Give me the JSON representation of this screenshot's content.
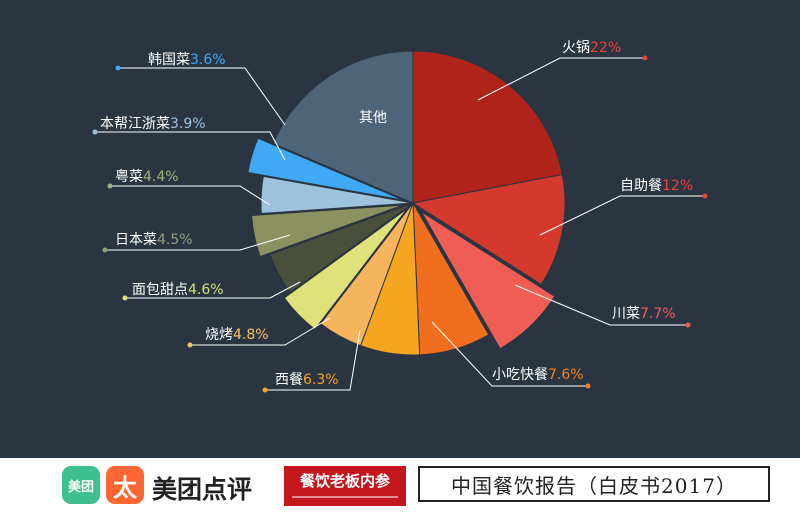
{
  "chart_data": {
    "type": "pie",
    "slices": [
      {
        "label": "火锅",
        "value": 22,
        "value_text": "22%",
        "color": "#b0231b",
        "label_color": "#ffffff",
        "value_color": "#e8443a"
      },
      {
        "label": "自助餐",
        "value": 12,
        "value_text": "12%",
        "color": "#d5392e",
        "label_color": "#ffffff",
        "value_color": "#e8443a"
      },
      {
        "label": "川菜",
        "value": 7.7,
        "value_text": "7.7%",
        "color": "#f05d55",
        "label_color": "#ffffff",
        "value_color": "#f05d55"
      },
      {
        "label": "小吃快餐",
        "value": 7.6,
        "value_text": "7.6%",
        "color": "#f26e1f",
        "label_color": "#ffffff",
        "value_color": "#f5821f"
      },
      {
        "label": "西餐",
        "value": 6.3,
        "value_text": "6.3%",
        "color": "#f5a51f",
        "label_color": "#ffffff",
        "value_color": "#f5a51f"
      },
      {
        "label": "烧烤",
        "value": 4.8,
        "value_text": "4.8%",
        "color": "#f7b45e",
        "label_color": "#ffffff",
        "value_color": "#f7c35e"
      },
      {
        "label": "面包甜点",
        "value": 4.6,
        "value_text": "4.6%",
        "color": "#dfe27a",
        "label_color": "#ffffff",
        "value_color": "#d9e07a"
      },
      {
        "label": "日本菜",
        "value": 4.5,
        "value_text": "4.5%",
        "color": "#4a4f3c",
        "label_color": "#ffffff",
        "value_color": "#8fa07a"
      },
      {
        "label": "粤菜",
        "value": 4.4,
        "value_text": "4.4%",
        "color": "#8c9160",
        "label_color": "#ffffff",
        "value_color": "#a4b07a"
      },
      {
        "label": "本帮江浙菜",
        "value": 3.9,
        "value_text": "3.9%",
        "color": "#9dc2dc",
        "label_color": "#ffffff",
        "value_color": "#9dc2dc"
      },
      {
        "label": "韩国菜",
        "value": 3.6,
        "value_text": "3.6%",
        "color": "#3fa9f5",
        "label_color": "#ffffff",
        "value_color": "#3fa9f5"
      },
      {
        "label": "其他",
        "value": 18.6,
        "value_text": "",
        "color": "#4e6478",
        "label_color": "#ffffff",
        "value_color": "#ffffff"
      }
    ]
  },
  "footer": {
    "meituan_icon_text": "美团",
    "dianping_icon_text": "太",
    "brand_name": "美团点评",
    "partner_name": "餐饮老板内参",
    "report_title": "中国餐饮报告（白皮书2017）"
  }
}
